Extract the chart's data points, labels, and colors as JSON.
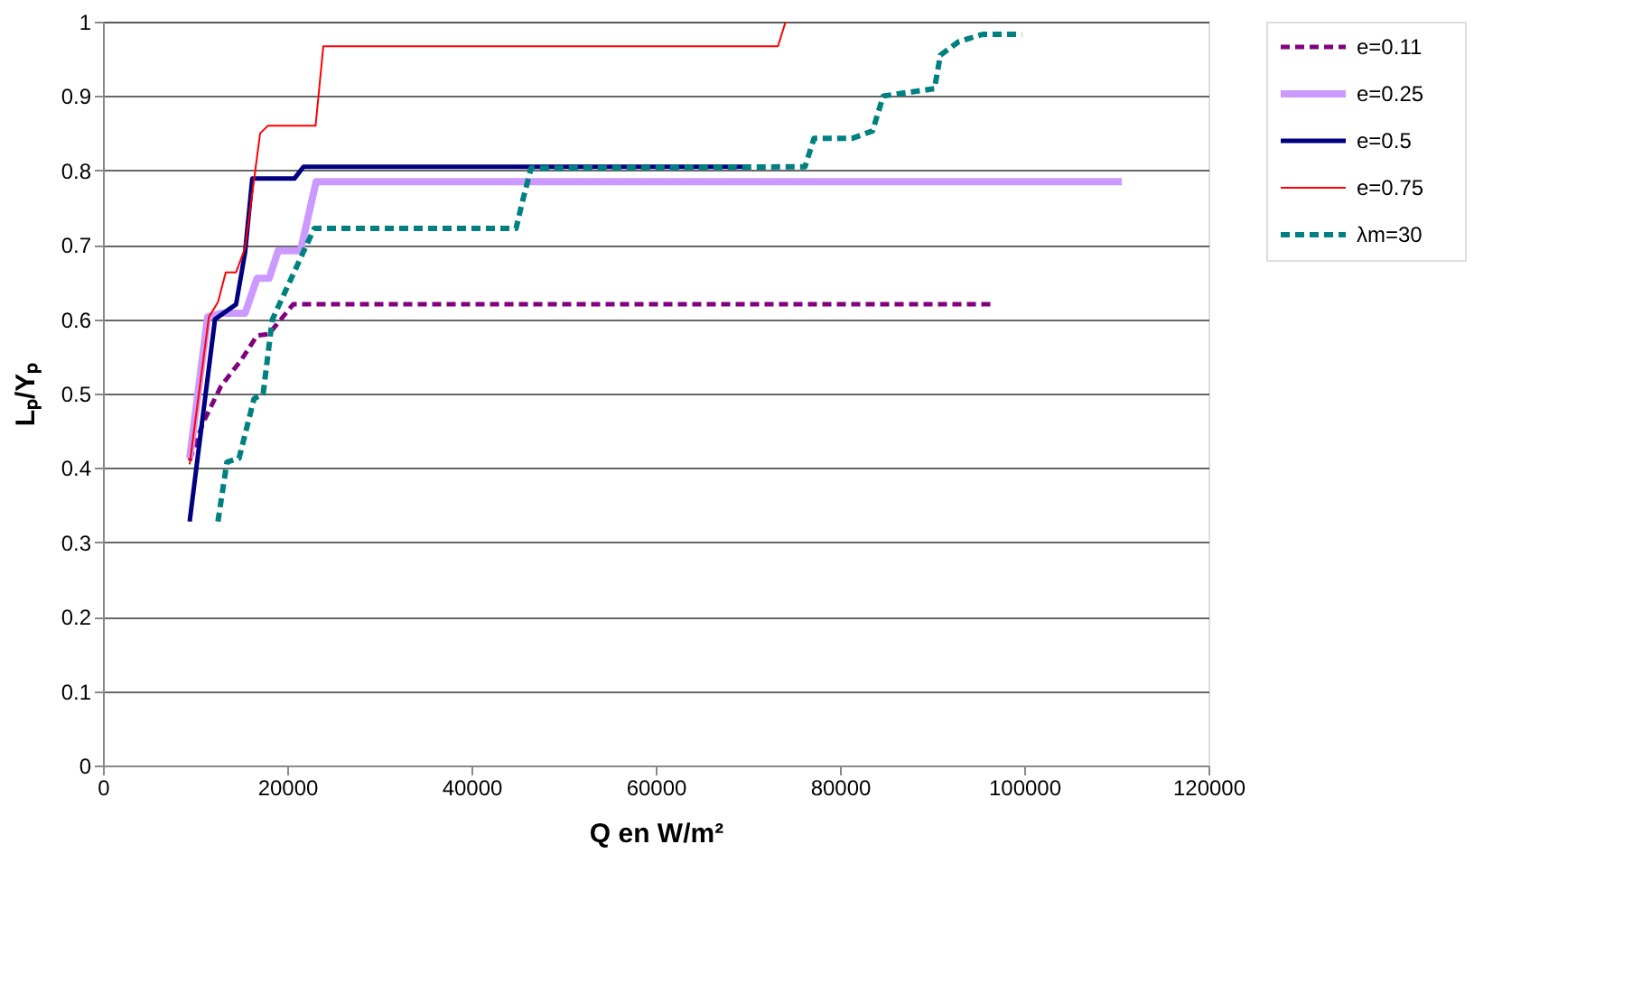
{
  "chart_data": {
    "type": "line",
    "xlabel": "Q en W/m²",
    "ylabel": "Lₚ/Yₚ",
    "xlim": [
      0,
      120000
    ],
    "xticks": [
      0,
      20000,
      40000,
      60000,
      80000,
      100000,
      120000
    ],
    "ylim": [
      0,
      1
    ],
    "yticks": [
      {
        "value": 0,
        "label": "0"
      },
      0.1,
      0.2,
      0.3,
      0.4,
      0.5,
      0.6,
      0.7,
      0.8,
      0.9,
      {
        "value": 1,
        "label": "1"
      }
    ],
    "grid": "y",
    "legend": "right",
    "marker": "none",
    "series": [
      {
        "name": "e=0.11",
        "color": "#800080",
        "line_style": "dashed",
        "x": [
          9410,
          10840,
          12810,
          15000,
          16730,
          18000,
          20650,
          96500
        ],
        "values": [
          0.41,
          0.46,
          0.51,
          0.545,
          0.578,
          0.58,
          0.62,
          0.62
        ]
      },
      {
        "name": "e=0.25",
        "color": "#cc99ff",
        "line_style": "solid",
        "x": [
          9410,
          11370,
          12810,
          15430,
          16730,
          18040,
          19020,
          21440,
          23140,
          110600
        ],
        "values": [
          0.413,
          0.603,
          0.608,
          0.608,
          0.655,
          0.655,
          0.692,
          0.692,
          0.785,
          0.785
        ]
      },
      {
        "name": "e=0.5",
        "color": "#000080",
        "line_style": "solid",
        "x": [
          9410,
          12160,
          14450,
          15430,
          16210,
          20780,
          21770,
          69600
        ],
        "values": [
          0.328,
          0.6,
          0.62,
          0.69,
          0.789,
          0.789,
          0.805,
          0.805
        ]
      },
      {
        "name": "e=0.75",
        "color": "#ff0000",
        "line_style": "solid",
        "x": [
          9410,
          11500,
          12480,
          13330,
          14450,
          15430,
          17060,
          17900,
          23080,
          23920,
          73270,
          74100
        ],
        "values": [
          0.405,
          0.603,
          0.623,
          0.663,
          0.663,
          0.696,
          0.85,
          0.86,
          0.86,
          0.967,
          0.967,
          1.0
        ]
      },
      {
        "name": "λm=30",
        "color": "#008080",
        "line_style": "dashed",
        "x": [
          12480,
          13460,
          14770,
          16400,
          17390,
          18370,
          21960,
          22940,
          44840,
          45490,
          46470,
          76210,
          77180,
          81290,
          83530,
          84700,
          90260,
          90900,
          92880,
          95490,
          99740
        ],
        "values": [
          0.328,
          0.408,
          0.413,
          0.493,
          0.5,
          0.599,
          0.696,
          0.722,
          0.722,
          0.756,
          0.803,
          0.805,
          0.843,
          0.843,
          0.853,
          0.9,
          0.91,
          0.955,
          0.973,
          0.983,
          0.983
        ]
      }
    ]
  }
}
